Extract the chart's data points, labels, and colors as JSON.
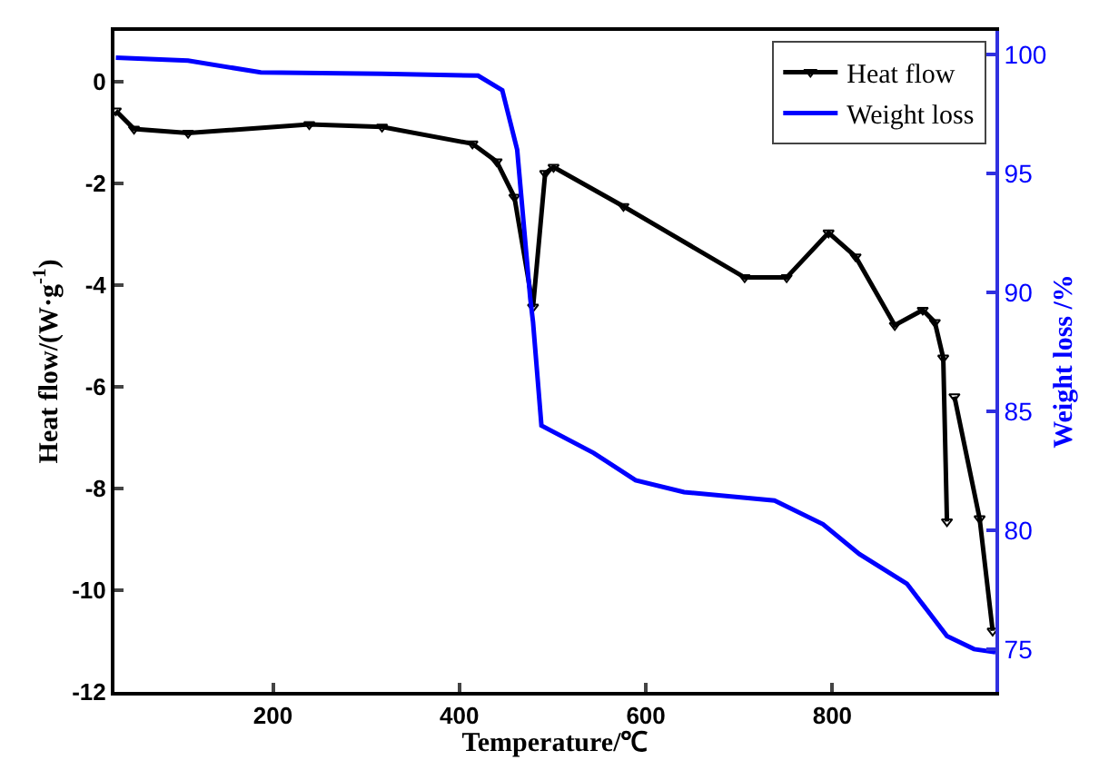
{
  "chart_data": {
    "type": "line",
    "xlabel": "Temperature/℃",
    "ylabel": "Heat flow/(W·g$^{-1}$)",
    "y2label": "Weight loss /%",
    "xlim": [
      30,
      975
    ],
    "xticks": [
      200,
      400,
      600,
      800
    ],
    "ylim": [
      -12,
      1
    ],
    "yticks": [
      -12,
      -10,
      -8,
      -6,
      -4,
      -2,
      0
    ],
    "y2lim": [
      73.2,
      101
    ],
    "y2ticks": [
      75,
      80,
      85,
      90,
      95,
      100
    ],
    "grid": false,
    "legend": "top right",
    "series": [
      {
        "name": "Heat flow",
        "color": "#000000",
        "marker": "triangle",
        "line_style": "solid",
        "x": [
          31.5,
          51,
          109,
          239,
          317,
          414,
          440,
          459,
          479,
          492,
          501,
          576,
          706,
          751,
          796,
          825,
          867,
          897,
          910,
          919,
          923,
          null,
          931,
          958,
          972
        ],
        "values": [
          -0.57,
          -0.93,
          -1.01,
          -0.84,
          -0.89,
          -1.22,
          -1.57,
          -2.27,
          -4.43,
          -1.8,
          -1.68,
          -2.45,
          -3.85,
          -3.85,
          -2.97,
          -3.44,
          -4.79,
          -4.49,
          -4.73,
          -5.43,
          -8.65,
          null,
          -6.19,
          -8.59,
          -10.8
        ]
      },
      {
        "name": "Weight loss",
        "color": "#0000ff",
        "marker": "none",
        "line_style": "solid",
        "axis": "y2",
        "x": [
          31.5,
          109,
          187,
          317,
          420,
          446,
          462,
          476,
          479,
          488,
          544,
          589,
          641,
          738,
          790,
          829,
          880,
          923,
          952,
          975
        ],
        "values": [
          99.87,
          99.75,
          99.25,
          99.2,
          99.12,
          98.5,
          96.0,
          89.75,
          88.75,
          84.4,
          83.25,
          82.1,
          81.6,
          81.25,
          80.25,
          79.0,
          77.75,
          75.55,
          75.0,
          74.87
        ]
      }
    ]
  }
}
